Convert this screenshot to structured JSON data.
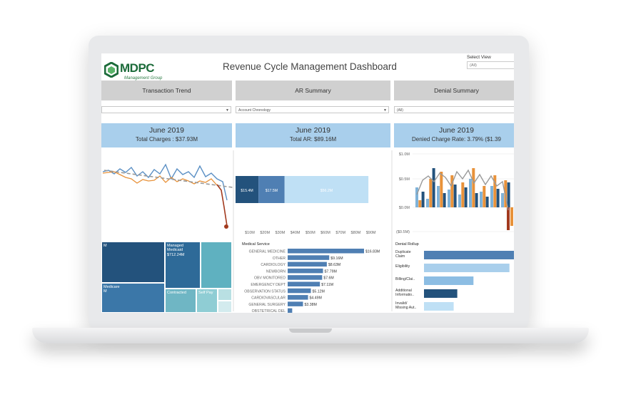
{
  "header": {
    "logo_text": "MDPC",
    "logo_tagline": "Management Group",
    "title": "Revenue Cycle Management Dashboard"
  },
  "select_view": {
    "label": "Select View",
    "value": "(All)"
  },
  "tabs": [
    {
      "label": "Transaction Trend"
    },
    {
      "label": "AR Summary"
    },
    {
      "label": "Denial Summary"
    }
  ],
  "filters": [
    {
      "value": ""
    },
    {
      "value": "Account Chronology"
    },
    {
      "value": "(All)"
    }
  ],
  "kpis": [
    {
      "month": "June 2019",
      "value": "Total Charges : $37.93M"
    },
    {
      "month": "June 2019",
      "value": "Total AR: $89.16M"
    },
    {
      "month": "June 2019",
      "value": "Denied Charge Rate: 3.79% ($1.39"
    }
  ],
  "colors": {
    "dark_blue": "#23527c",
    "mid_blue": "#4f7fb3",
    "light_blue": "#a9cfec",
    "orange": "#e8923a",
    "red": "#a23a1e",
    "teal": "#5fb1c0"
  },
  "ar_summary": {
    "segments": [
      {
        "label": "$15.4M",
        "value": 15.4
      },
      {
        "label": "$17.5M",
        "value": 17.5
      },
      {
        "label": "$56.2M",
        "value": 56.2
      }
    ],
    "axis": [
      "$10M",
      "$20M",
      "$30M",
      "$40M",
      "$50M",
      "$60M",
      "$70M",
      "$80M",
      "$90M"
    ]
  },
  "denial_axis": [
    "$1.0M",
    "$0.5M",
    "$0.0M",
    "($0.5M)"
  ],
  "treemap": {
    "left_top": "M",
    "managed_medicaid": "Managed\nMedicaid\n$712.24M",
    "medicare": "Medicare\nM",
    "contracted": "Contracted",
    "self_pay": "Self Pay"
  },
  "medical_service": {
    "header": "Medical Service",
    "rows": [
      {
        "label": "GENERAL MEDICINE",
        "value": 16.83,
        "text": "$16.83M"
      },
      {
        "label": "OTHER",
        "value": 9.16,
        "text": "$9.16M"
      },
      {
        "label": "CARDIOLOGY",
        "value": 8.63,
        "text": "$8.63M"
      },
      {
        "label": "NEWBORN",
        "value": 7.79,
        "text": "$7.79M"
      },
      {
        "label": "OBV MONITORED",
        "value": 7.6,
        "text": "$7.6M"
      },
      {
        "label": "EMERGENCY DEPT",
        "value": 7.11,
        "text": "$7.11M"
      },
      {
        "label": "OBSERVATION STATUS",
        "value": 5.12,
        "text": "$5.12M"
      },
      {
        "label": "CARDIOVASCULAR",
        "value": 4.49,
        "text": "$4.49M"
      },
      {
        "label": "GENERAL SURGERY",
        "value": 3.38,
        "text": "$3.38M"
      },
      {
        "label": "OBSTETRICAL DEL",
        "value": 1.0,
        "text": ""
      }
    ]
  },
  "denial_rollup": {
    "header": "Denial Rollup",
    "rows": [
      {
        "label": "Duplicate\nClaim",
        "value": 1.0
      },
      {
        "label": "Eligibility",
        "value": 0.95
      },
      {
        "label": "Billing/Clai..",
        "value": 0.55
      },
      {
        "label": "Additional\nInformatio..",
        "value": 0.37
      },
      {
        "label": "Invalid/\nMissing Aut..",
        "value": 0.33
      }
    ]
  }
}
